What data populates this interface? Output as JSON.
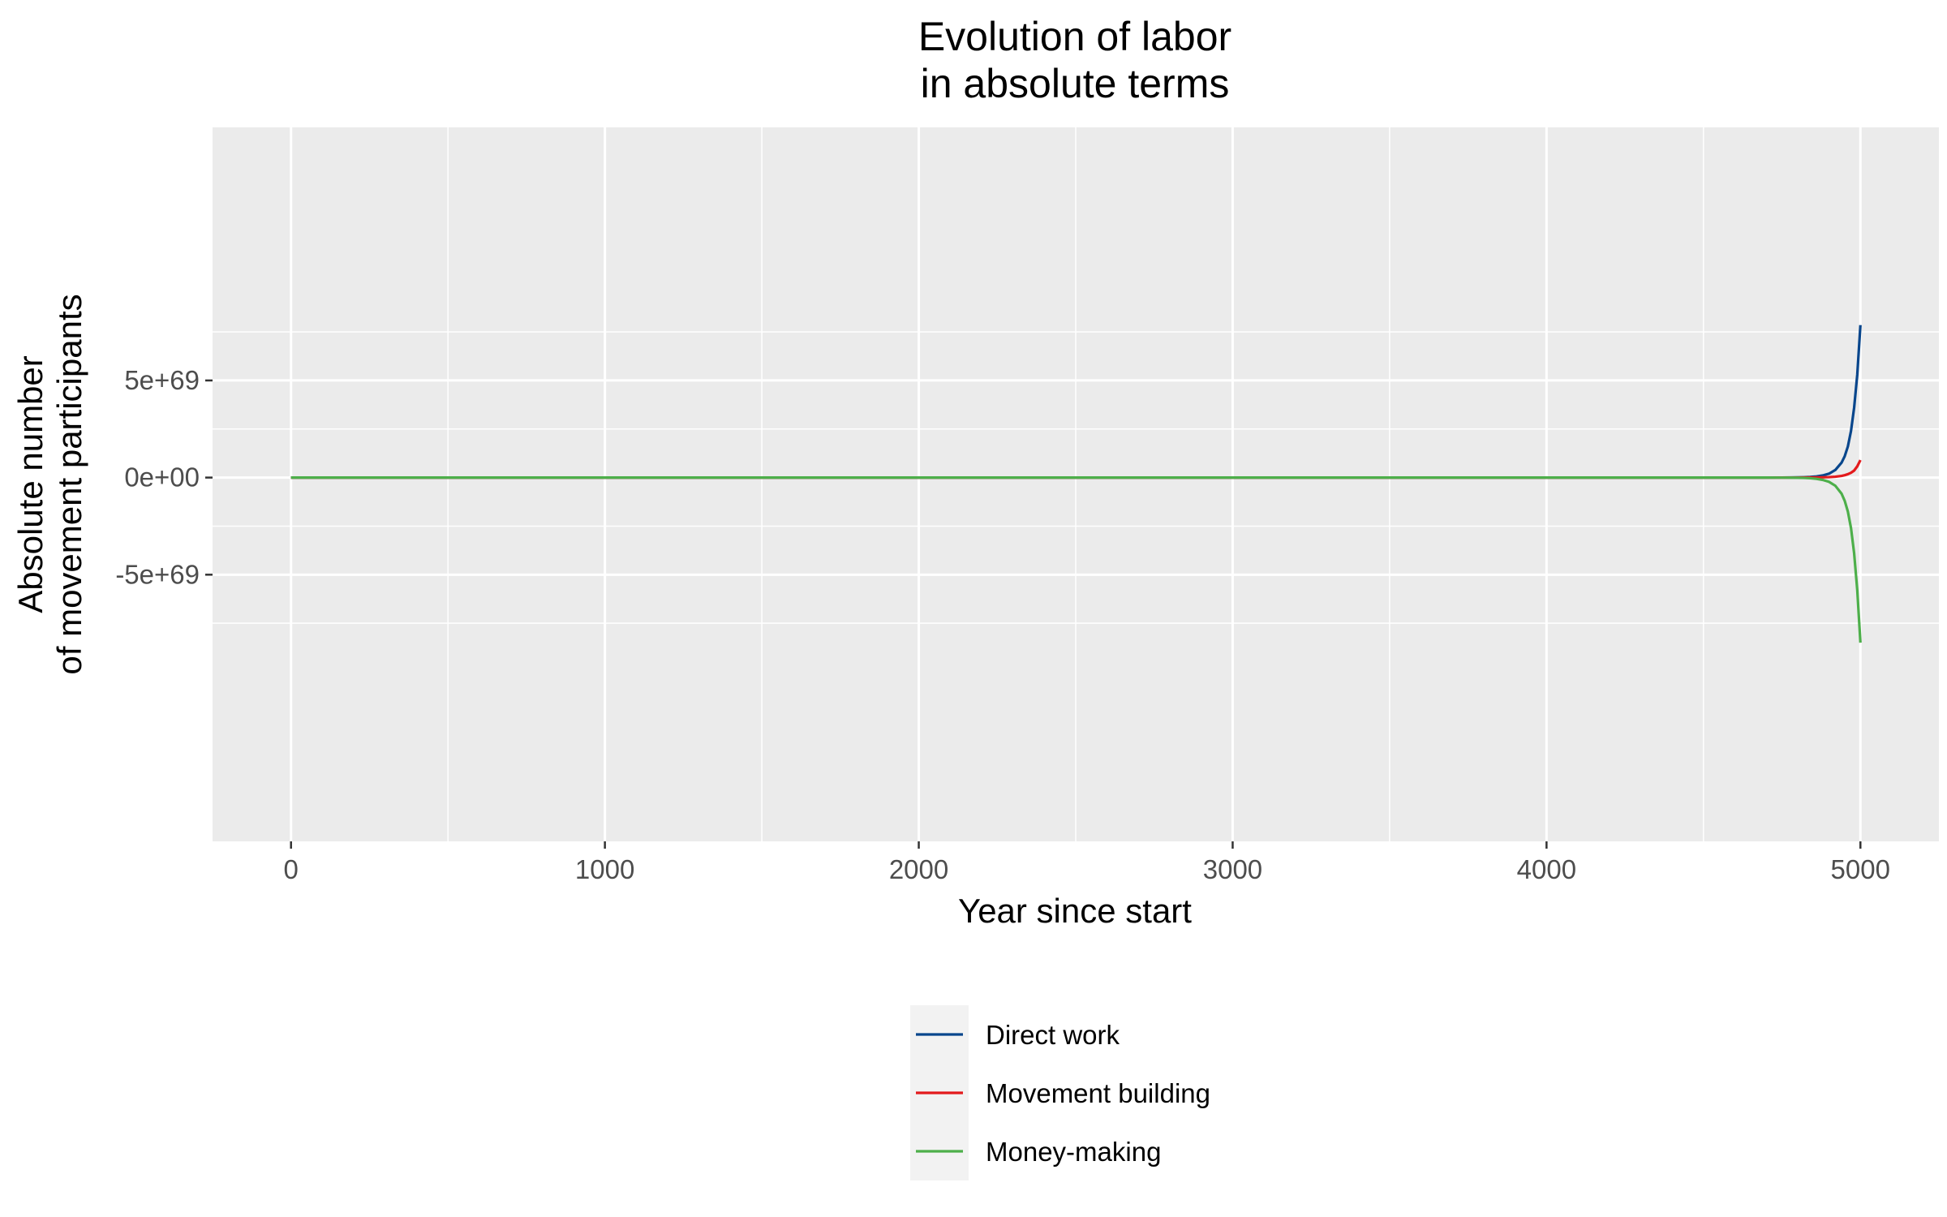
{
  "chart_data": {
    "type": "line",
    "title_lines": [
      "Evolution of labor",
      "in absolute terms"
    ],
    "xlabel": "Year since start",
    "ylabel_lines": [
      "Absolute number",
      "of movement participants"
    ],
    "xlim": [
      -250,
      5250
    ],
    "ylim": [
      -1.873e+70,
      1.803e+70
    ],
    "x_ticks": [
      {
        "value": 0,
        "label": "0"
      },
      {
        "value": 1000,
        "label": "1000"
      },
      {
        "value": 2000,
        "label": "2000"
      },
      {
        "value": 3000,
        "label": "3000"
      },
      {
        "value": 4000,
        "label": "4000"
      },
      {
        "value": 5000,
        "label": "5000"
      }
    ],
    "x_minor_ticks": [
      500,
      1500,
      2500,
      3500,
      4500
    ],
    "y_ticks": [
      {
        "value": 5e+69,
        "label": "5e+69"
      },
      {
        "value": 0,
        "label": "0e+00"
      },
      {
        "value": -5e+69,
        "label": "-5e+69"
      }
    ],
    "y_minor_ticks": [
      7.5e+69,
      2.5e+69,
      -2.5e+69,
      -7.5e+69
    ],
    "grid": true,
    "legend_position": "bottom",
    "background_color": "#ebebeb",
    "grid_color": "#ffffff",
    "series": [
      {
        "name": "Direct work",
        "color": "#08468c",
        "x": [
          0,
          4700,
          4750,
          4780,
          4800,
          4820,
          4840,
          4860,
          4880,
          4900,
          4920,
          4940,
          4950,
          4960,
          4970,
          4980,
          4990,
          5000
        ],
        "y": [
          0,
          0,
          2e+66,
          5e+66,
          1e+67,
          1.8e+67,
          3.3e+67,
          6e+67,
          1.1e+68,
          2e+68,
          3.9e+68,
          7.7e+68,
          1.1e+69,
          1.6e+69,
          2.4e+69,
          3.6e+69,
          5.3e+69,
          7.85e+69
        ]
      },
      {
        "name": "Movement building",
        "color": "#e31a1c",
        "x": [
          0,
          4700,
          4800,
          4850,
          4880,
          4900,
          4920,
          4940,
          4950,
          4960,
          4970,
          4980,
          4990,
          5000
        ],
        "y": [
          0,
          0,
          1e+66,
          5e+66,
          1.2e+67,
          2.3e+67,
          4.5e+67,
          8.7e+67,
          1.23e+68,
          1.75e+68,
          2.5e+68,
          3.6e+68,
          5.8e+68,
          9e+68
        ]
      },
      {
        "name": "Money-making",
        "color": "#4daf4a",
        "x": [
          0,
          4700,
          4750,
          4780,
          4800,
          4820,
          4840,
          4860,
          4880,
          4900,
          4920,
          4940,
          4950,
          4960,
          4970,
          4980,
          4990,
          5000
        ],
        "y": [
          0,
          0,
          -2e+66,
          -5e+66,
          -1e+67,
          -1.9e+67,
          -3.5e+67,
          -6.5e+67,
          -1.2e+68,
          -2.2e+68,
          -4.2e+68,
          -8.3e+68,
          -1.2e+69,
          -1.75e+69,
          -2.6e+69,
          -3.9e+69,
          -5.8e+69,
          -8.5e+69
        ]
      }
    ]
  }
}
